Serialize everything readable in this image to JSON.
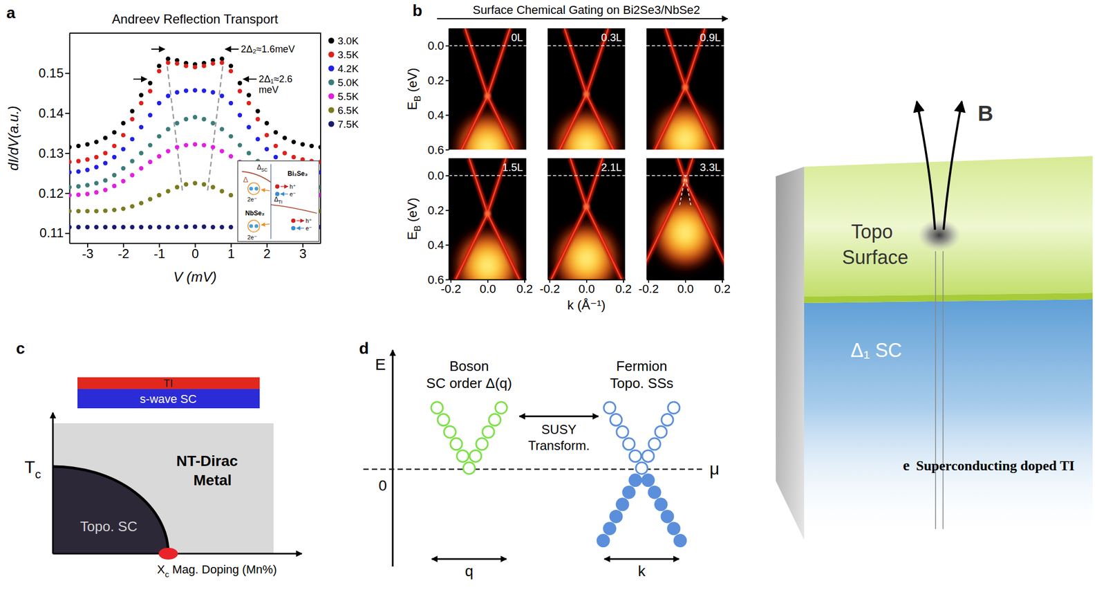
{
  "chart_data": [
    {
      "letter": "a",
      "type": "line",
      "title": "Andreev Reflection Transport",
      "x_label": "V (mV)",
      "y_label": "dI/dV(a.u.)",
      "marker": "circle",
      "line_style": "none",
      "legend": "right",
      "x": [
        -3.5,
        -3.25,
        -3,
        -2.75,
        -2.5,
        -2.25,
        -2,
        -1.75,
        -1.5,
        -1.25,
        -1,
        -0.75,
        -0.5,
        -0.25,
        0,
        0.25,
        0.5,
        0.75,
        1,
        1.25,
        1.5,
        1.75,
        2,
        2.25,
        2.5,
        2.75,
        3,
        3.25,
        3.5
      ],
      "series": [
        {
          "name": "3.0K",
          "color": "#000000",
          "values": [
            0.1315,
            0.1318,
            0.1322,
            0.1328,
            0.1338,
            0.1352,
            0.1375,
            0.1405,
            0.1445,
            0.1475,
            0.1518,
            0.1536,
            0.1532,
            0.1525,
            0.1522,
            0.1525,
            0.1532,
            0.1536,
            0.1518,
            0.1475,
            0.1445,
            0.1405,
            0.1375,
            0.1352,
            0.1338,
            0.1328,
            0.1322,
            0.1318,
            0.1315
          ]
        },
        {
          "name": "3.5K",
          "color": "#e0201c",
          "values": [
            0.1278,
            0.128,
            0.1284,
            0.129,
            0.13,
            0.1318,
            0.1345,
            0.1385,
            0.1425,
            0.1455,
            0.1505,
            0.1526,
            0.1524,
            0.1518,
            0.1515,
            0.1518,
            0.1524,
            0.1526,
            0.1505,
            0.1455,
            0.1425,
            0.1385,
            0.1345,
            0.1318,
            0.13,
            0.129,
            0.1284,
            0.128,
            0.1278
          ]
        },
        {
          "name": "4.2K",
          "color": "#2020e8",
          "values": [
            0.1252,
            0.1254,
            0.1258,
            0.1265,
            0.1275,
            0.129,
            0.131,
            0.1335,
            0.1365,
            0.1395,
            0.1425,
            0.1443,
            0.1452,
            0.1456,
            0.1457,
            0.1456,
            0.1452,
            0.1443,
            0.1425,
            0.1395,
            0.1365,
            0.1335,
            0.131,
            0.129,
            0.1275,
            0.1265,
            0.1258,
            0.1254,
            0.1252
          ]
        },
        {
          "name": "5.0K",
          "color": "#3a7d7a",
          "values": [
            0.1215,
            0.1217,
            0.122,
            0.1225,
            0.1232,
            0.1245,
            0.1262,
            0.128,
            0.13,
            0.132,
            0.1342,
            0.136,
            0.1375,
            0.1385,
            0.139,
            0.1385,
            0.1375,
            0.136,
            0.1342,
            0.132,
            0.13,
            0.128,
            0.1262,
            0.1245,
            0.1232,
            0.1225,
            0.122,
            0.1217,
            0.1215
          ]
        },
        {
          "name": "5.5K",
          "color": "#e020e0",
          "values": [
            0.1195,
            0.1196,
            0.1198,
            0.1202,
            0.1208,
            0.1218,
            0.123,
            0.1245,
            0.1262,
            0.1278,
            0.1292,
            0.1305,
            0.1315,
            0.132,
            0.1322,
            0.132,
            0.1315,
            0.1305,
            0.1292,
            0.1278,
            0.1262,
            0.1245,
            0.123,
            0.1218,
            0.1208,
            0.1202,
            0.1198,
            0.1196,
            0.1195
          ]
        },
        {
          "name": "6.5K",
          "color": "#7b7b1e",
          "values": [
            0.1155,
            0.1155,
            0.1155,
            0.1155,
            0.1156,
            0.1158,
            0.1161,
            0.1167,
            0.1175,
            0.1185,
            0.1195,
            0.1205,
            0.1215,
            0.1222,
            0.1225,
            0.1222,
            0.1215,
            0.1205,
            0.1195,
            0.1185,
            0.1175,
            0.1167,
            0.1161,
            0.1158,
            0.1156,
            0.1155,
            0.1155,
            0.1155,
            0.1155
          ]
        },
        {
          "name": "7.5K",
          "color": "#1a1a70",
          "values": [
            0.1115,
            0.1115,
            0.1115,
            0.1115,
            0.1115,
            0.1115,
            0.1115,
            0.1115,
            0.1115,
            0.1115,
            0.1115,
            0.1115,
            0.1115,
            0.1116,
            0.1116,
            0.1116,
            0.1115,
            0.1115,
            0.1115,
            0.1115,
            0.1115,
            0.1115,
            0.1115,
            0.1115,
            0.1115,
            0.1115,
            0.1115,
            0.1115,
            0.1115
          ]
        }
      ],
      "xlim": [
        -3.5,
        3.5
      ],
      "xticks": [
        -3,
        -2,
        -1,
        0,
        1,
        2,
        3
      ],
      "ylim": [
        0.1075,
        0.16
      ],
      "yticks": [
        0.11,
        0.12,
        0.13,
        0.14,
        0.15
      ],
      "gap_markers": [
        {
          "lines": [
            "2Δ₂≈1.6meV"
          ],
          "x": [
            -0.8,
            0.8
          ],
          "y": 0.156
        },
        {
          "lines": [
            "2Δ₁≈2.6",
            "meV"
          ],
          "x": [
            -1.3,
            1.3
          ],
          "y": 0.1485
        }
      ],
      "guide_lines": [
        {
          "x": [
            -0.8,
            -0.35
          ],
          "y": [
            0.1537,
            0.1205
          ]
        },
        {
          "x": [
            0.8,
            0.35
          ],
          "y": [
            0.1537,
            0.1205
          ]
        }
      ],
      "inset": {
        "gap": "Δ",
        "gap_sc": [
          "Δ",
          {
            "sub": "SC"
          }
        ],
        "gap_ti": [
          "Δ",
          {
            "sub": "TI"
          }
        ],
        "left_material": "NbSe₂",
        "right_material": "Bi₂Se₃",
        "pair_top": "2e⁻",
        "pair_bottom": "2e⁻",
        "hole_top": "h⁺",
        "hole_bottom": "h⁺",
        "electron_top": "e⁻",
        "electron_bottom": "e⁻"
      }
    },
    {
      "letter": "b",
      "type": "image",
      "title": "Surface Chemical Gating on Bi2Se3/NbSe2",
      "x_label": "k (Å⁻¹)",
      "y_label": [
        "E",
        {
          "sub": "B"
        },
        " (eV)"
      ],
      "xlim": [
        -0.21,
        0.21
      ],
      "xticks": [
        -0.2,
        {
          "value": 0,
          "label": "0.0"
        },
        0.2
      ],
      "ylim": [
        -0.1,
        0.6
      ],
      "yticks": [
        {
          "value": 0,
          "label": "0.0"
        },
        0.2,
        0.4,
        0.6
      ],
      "fermi_level": 0,
      "panels": [
        {
          "label": "0L",
          "dirac_point": 0.29
        },
        {
          "label": "0.3L",
          "dirac_point": 0.28
        },
        {
          "label": "0.9L",
          "dirac_point": 0.24
        },
        {
          "label": "1.5L",
          "dirac_point": 0.22
        },
        {
          "label": "2.1L",
          "dirac_point": 0.18
        },
        {
          "label": "3.3L",
          "dirac_point": 0.03,
          "guide": {
            "k": [
              -0.03,
              0,
              0.03
            ],
            "E": [
              0.17,
              0,
              0.17
            ]
          }
        }
      ]
    }
  ],
  "diagrams": {
    "c": {
      "letter": "c",
      "layers": {
        "top": "TI",
        "bottom": "s-wave SC"
      },
      "y_label": [
        "T",
        {
          "sub": "c"
        }
      ],
      "x_label": [
        "X",
        {
          "sub": "c"
        },
        " Mag. Doping (Mn%)"
      ],
      "normal_phase": [
        "NT-Dirac",
        "Metal"
      ],
      "sc_phase": "Topo. SC"
    },
    "d": {
      "letter": "d",
      "axis": "E",
      "zero": "0",
      "mu": "μ",
      "boson": {
        "title": "Boson",
        "subtitle": "SC order Δ(q)",
        "momentum": "q"
      },
      "fermion": {
        "title": "Fermion",
        "subtitle": "Topo. SSs",
        "momentum": "k"
      },
      "transform": [
        "SUSY",
        "Transform."
      ]
    },
    "e": {
      "letter": "e",
      "caption": "Superconducting doped TI",
      "surface": [
        "Topo",
        "Surface"
      ],
      "bulk": "Δ₁ SC",
      "field": "B"
    }
  }
}
